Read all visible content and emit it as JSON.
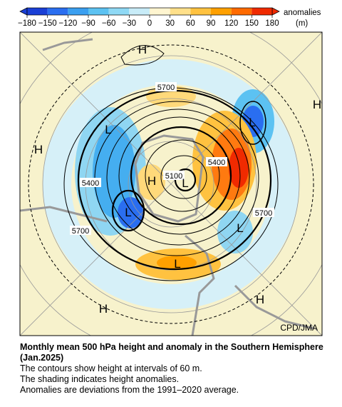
{
  "colorbar": {
    "ticks": [
      "−180",
      "−150",
      "−120",
      "−90",
      "−60",
      "−30",
      "0",
      "30",
      "60",
      "90",
      "120",
      "150",
      "180"
    ],
    "label": "anomalies",
    "unit": "(m)"
  },
  "map": {
    "contour_labels": [
      "5700",
      "5400",
      "5100",
      "5400",
      "5700",
      "5700"
    ],
    "highs": [
      "H",
      "H",
      "H",
      "H",
      "H",
      "H"
    ],
    "lows": [
      "L",
      "L",
      "L",
      "L",
      "L",
      "L"
    ],
    "credit": "CPD/JMA"
  },
  "caption": {
    "title": "Monthly mean 500 hPa height and anomaly in the Southern Hemisphere (Jan.2025)",
    "lines": [
      "The contours show height at intervals of 60 m.",
      "The shading indicates height anomalies.",
      "Anomalies are deviations from the 1991–2020 average."
    ]
  }
}
